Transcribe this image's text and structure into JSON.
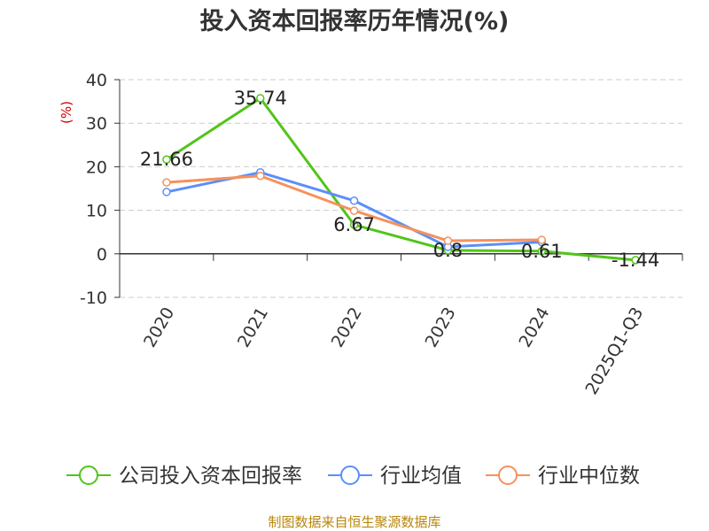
{
  "chart_data": {
    "type": "line",
    "title": "投入资本回报率历年情况(%)",
    "ylabel": "(%)",
    "categories": [
      "2020",
      "2021",
      "2022",
      "2023",
      "2024",
      "2025Q1-Q3"
    ],
    "ylim": [
      -10,
      40
    ],
    "yticks": [
      40,
      30,
      20,
      10,
      0,
      -10
    ],
    "grid": true,
    "series": [
      {
        "name": "公司投入资本回报率",
        "color": "#52c41a",
        "values": [
          21.66,
          35.74,
          6.67,
          0.8,
          0.61,
          -1.44
        ],
        "labels": [
          "21.66",
          "35.74",
          "6.67",
          "0.8",
          "0.61",
          "-1.44"
        ]
      },
      {
        "name": "行业均值",
        "color": "#5b8ff9",
        "values": [
          14.2,
          18.7,
          12.2,
          1.6,
          2.7,
          null
        ]
      },
      {
        "name": "行业中位数",
        "color": "#f6915c",
        "values": [
          16.4,
          17.9,
          9.9,
          3.0,
          3.2,
          null
        ]
      }
    ],
    "legend_position": "bottom"
  },
  "source_text": "制图数据来自恒生聚源数据库"
}
